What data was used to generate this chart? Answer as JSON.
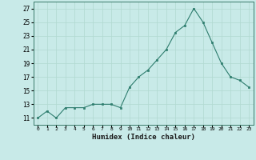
{
  "x": [
    0,
    1,
    2,
    3,
    4,
    5,
    6,
    7,
    8,
    9,
    10,
    11,
    12,
    13,
    14,
    15,
    16,
    17,
    18,
    19,
    20,
    21,
    22,
    23
  ],
  "y": [
    11,
    12,
    11,
    12.5,
    12.5,
    12.5,
    13,
    13,
    13,
    12.5,
    15.5,
    17,
    18,
    19.5,
    21,
    23.5,
    24.5,
    27,
    25,
    22,
    19,
    17,
    16.5,
    15.5
  ],
  "line_color": "#2e7d6e",
  "marker_color": "#2e7d6e",
  "bg_color": "#c8eae8",
  "grid_color": "#b0d8d0",
  "xlabel": "Humidex (Indice chaleur)",
  "xlim": [
    -0.5,
    23.5
  ],
  "ylim": [
    10,
    28
  ],
  "yticks": [
    11,
    13,
    15,
    17,
    19,
    21,
    23,
    25,
    27
  ],
  "xtick_labels": [
    "0",
    "1",
    "2",
    "3",
    "4",
    "5",
    "6",
    "7",
    "8",
    "9",
    "10",
    "11",
    "12",
    "13",
    "14",
    "15",
    "16",
    "17",
    "18",
    "19",
    "20",
    "21",
    "22",
    "23"
  ]
}
